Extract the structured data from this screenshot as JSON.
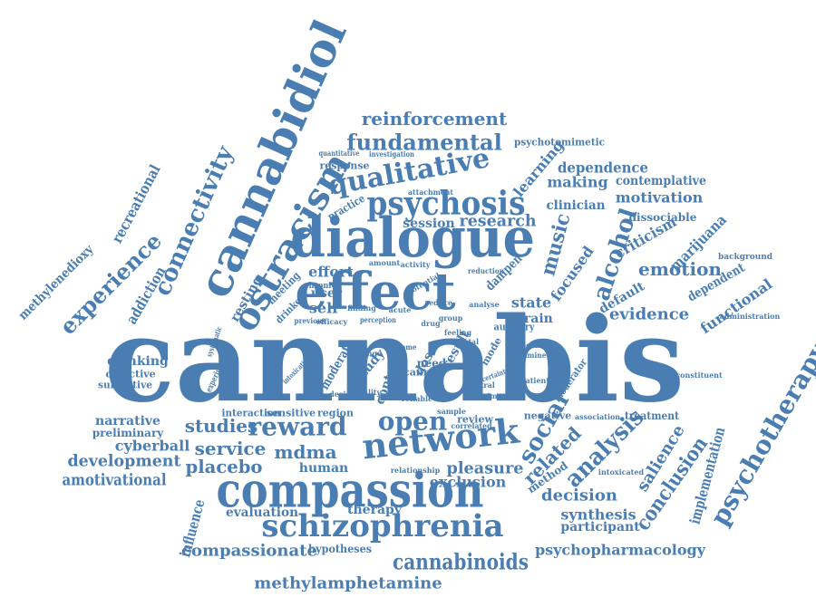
{
  "accent": "#4a7eb2",
  "words": [
    "cannabis",
    "cannabidiol",
    "dialogue",
    "effect",
    "compassion",
    "schizophrenia",
    "network",
    "ostracism",
    "psychosis",
    "qualitative",
    "fundamental",
    "reinforcement",
    "psychotherapy",
    "connectivity",
    "experience",
    "alcohol",
    "music",
    "social",
    "analysis",
    "conclusion",
    "reward",
    "open",
    "studies",
    "service",
    "mdma",
    "placebo",
    "development",
    "amotivational",
    "cyberball",
    "narrative",
    "drinking",
    "objective",
    "subjective",
    "preliminary",
    "addiction",
    "recreational",
    "methylenedioxy",
    "cannabinoids",
    "methylamphetamine",
    "compassionate",
    "psychopharmacology",
    "participant",
    "synthesis",
    "decision",
    "pleasure",
    "exclusion",
    "therapy",
    "evaluation",
    "human",
    "hypotheses",
    "influence",
    "implementation",
    "salience",
    "related",
    "functional",
    "emotion",
    "evidence",
    "default",
    "focused",
    "criticism",
    "marijuana",
    "dissociable",
    "motivation",
    "clinician",
    "making",
    "learning",
    "dependence",
    "contemplative",
    "research",
    "session",
    "practice",
    "response",
    "quantitative",
    "investigation",
    "psychotomimetic",
    "resting",
    "meeting",
    "effort",
    "user",
    "self",
    "state",
    "brain",
    "moderate",
    "study",
    "control",
    "dose",
    "result",
    "need",
    "cann",
    "review",
    "negative",
    "treatment",
    "association",
    "region",
    "sensitive",
    "interaction",
    "design",
    "health",
    "moderator",
    "constituent",
    "administration",
    "background",
    "dependent",
    "method",
    "intoxicated",
    "relationship",
    "experimental",
    "systematic",
    "intoxication",
    "drinker",
    "chronic",
    "dampen",
    "reduction",
    "analyse",
    "potential",
    "reduce",
    "group",
    "drug",
    "auditory",
    "positive",
    "feeling",
    "mental",
    "examine",
    "mode",
    "ventral",
    "quality",
    "uncertainty",
    "imagery",
    "attachment",
    "efficacy",
    "finding",
    "previous",
    "correlated",
    "sample",
    "reliable",
    "amount",
    "activity",
    "acute",
    "outcome",
    "change",
    "patient",
    "perception",
    "tobacco"
  ]
}
